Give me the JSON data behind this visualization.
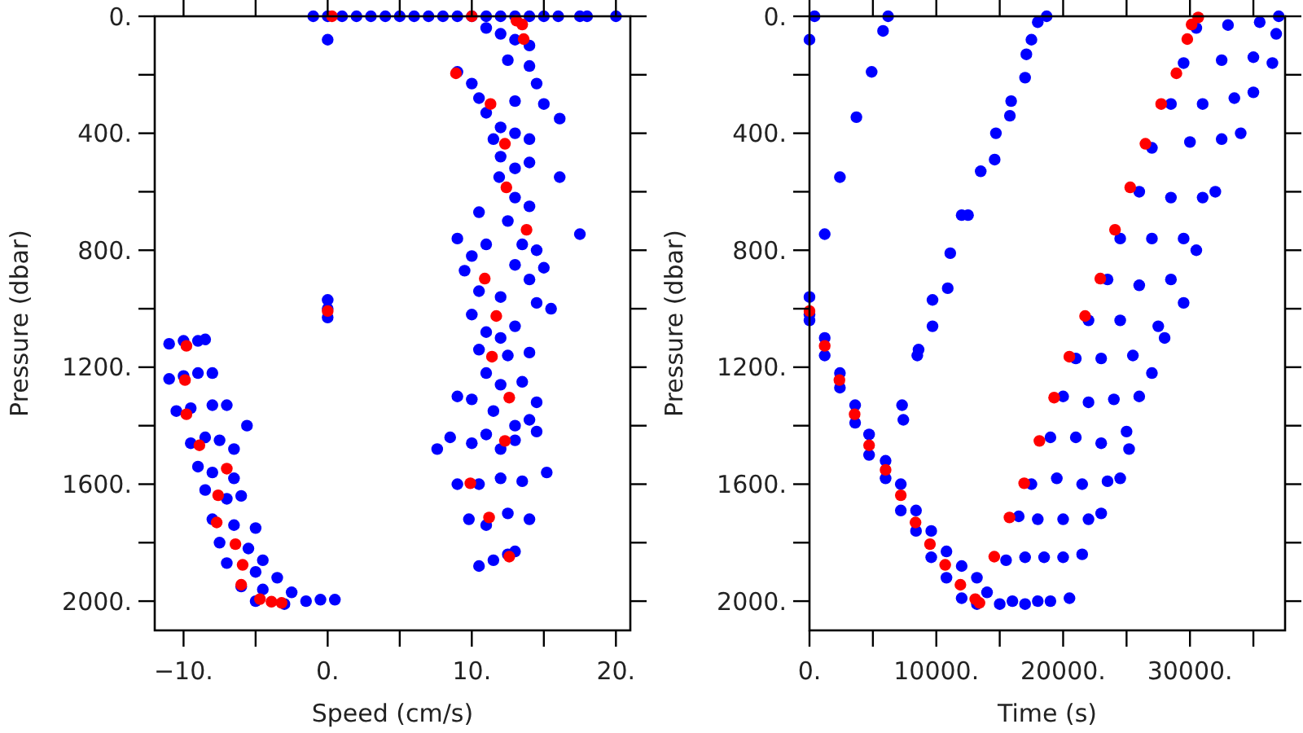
{
  "chart_data": [
    {
      "type": "scatter",
      "xlabel": "Speed (cm/s)",
      "ylabel": "Pressure (dbar)",
      "marker": "circle",
      "grid": false,
      "xlim": [
        -12,
        21
      ],
      "ylim": [
        2100,
        0
      ],
      "xticks": [
        {
          "value": -10,
          "label": "−10."
        },
        {
          "value": -5,
          "label": null
        },
        {
          "value": 0,
          "label": "0."
        },
        {
          "value": 5,
          "label": null
        },
        {
          "value": 10,
          "label": "10."
        },
        {
          "value": 15,
          "label": null
        },
        {
          "value": 20,
          "label": "20."
        }
      ],
      "yticks": [
        {
          "value": 0,
          "label": "0."
        },
        {
          "value": 200,
          "label": null
        },
        {
          "value": 400,
          "label": "400."
        },
        {
          "value": 600,
          "label": null
        },
        {
          "value": 800,
          "label": "800."
        },
        {
          "value": 1000,
          "label": null
        },
        {
          "value": 1200,
          "label": "1200."
        },
        {
          "value": 1400,
          "label": null
        },
        {
          "value": 1600,
          "label": "1600."
        },
        {
          "value": 1800,
          "label": null
        },
        {
          "value": 2000,
          "label": "2000."
        }
      ],
      "series": [
        {
          "color": "#0000ff",
          "x": [
            -1,
            0,
            1,
            2,
            3,
            4,
            5,
            6,
            7,
            8,
            9,
            10,
            11,
            12,
            13,
            14,
            15,
            16,
            17.5,
            18,
            20,
            0,
            11,
            12,
            13,
            14,
            12.5,
            14,
            14.5,
            13,
            15,
            9,
            10,
            10.5,
            11,
            12,
            11.5,
            13,
            14,
            12,
            13,
            14,
            11.9,
            13,
            14,
            12.5,
            13.5,
            14.5,
            15,
            14,
            13,
            16.1,
            16.1,
            17.5,
            10.5,
            9,
            10,
            11,
            9.5,
            10.5,
            12,
            14.5,
            15.5,
            10,
            11,
            12,
            13,
            10.5,
            12.5,
            14,
            11,
            12,
            13.5,
            14.5,
            9,
            10,
            11.5,
            13,
            14,
            8.5,
            10,
            11,
            12,
            13,
            14.5,
            7.6,
            9,
            10.5,
            12,
            13.5,
            15.2,
            9.8,
            11,
            12.5,
            14,
            10.5,
            11.5,
            12.5,
            13,
            0,
            0,
            0,
            -11,
            -10,
            -9,
            -8.5,
            -11,
            -10,
            -9,
            -8,
            -10.5,
            -9.5,
            -8,
            -7,
            -9.5,
            -8.5,
            -7.5,
            -6.5,
            -5.6,
            -9,
            -8,
            -6.5,
            -8.5,
            -7,
            -6,
            -8,
            -6.5,
            -5,
            -7.5,
            -5.5,
            -4.5,
            -7,
            -5,
            -3.5,
            -6,
            -4.5,
            -2.5,
            -5,
            -3,
            -1.5,
            -0.5,
            0.5
          ],
          "values": [
            0,
            0,
            0,
            0,
            0,
            0,
            0,
            0,
            0,
            0,
            0,
            0,
            0,
            0,
            0,
            0,
            0,
            0,
            0,
            0,
            0,
            80,
            40,
            60,
            80,
            100,
            150,
            170,
            230,
            290,
            300,
            190,
            230,
            280,
            330,
            380,
            420,
            400,
            420,
            480,
            520,
            500,
            550,
            620,
            650,
            700,
            780,
            800,
            860,
            900,
            850,
            350,
            550,
            745,
            670,
            760,
            820,
            780,
            870,
            940,
            960,
            980,
            1000,
            1020,
            1080,
            1100,
            1060,
            1140,
            1160,
            1150,
            1220,
            1260,
            1250,
            1320,
            1300,
            1310,
            1350,
            1400,
            1380,
            1440,
            1460,
            1430,
            1480,
            1450,
            1420,
            1480,
            1600,
            1600,
            1580,
            1590,
            1560,
            1720,
            1740,
            1700,
            1720,
            1880,
            1860,
            1840,
            1830,
            970,
            1000,
            1030,
            1120,
            1110,
            1110,
            1105,
            1240,
            1230,
            1220,
            1220,
            1350,
            1340,
            1330,
            1330,
            1460,
            1440,
            1450,
            1480,
            1400,
            1540,
            1560,
            1580,
            1620,
            1650,
            1640,
            1720,
            1740,
            1750,
            1800,
            1820,
            1860,
            1870,
            1900,
            1920,
            1950,
            1960,
            1970,
            2000,
            2010,
            2000,
            1995,
            1995
          ]
        },
        {
          "color": "#ff0000",
          "x": [
            0.3,
            10,
            13.1,
            13.5,
            13.6,
            8.9,
            11.3,
            12.3,
            12.4,
            13.8,
            10.9,
            11.7,
            11.4,
            12.6,
            12.3,
            9.9,
            11.2,
            12.6,
            0,
            -9.8,
            -9.9,
            -9.8,
            -8.9,
            -7,
            -7.6,
            -7.7,
            -6.4,
            -5.9,
            -6,
            -4.7,
            -3.9,
            -3.2
          ],
          "values": [
            0,
            0,
            15,
            28,
            78,
            195,
            300,
            436,
            585,
            730,
            897,
            1025,
            1164,
            1304,
            1452,
            1597,
            1714,
            1848,
            1008,
            1127,
            1244,
            1361,
            1467,
            1547,
            1638,
            1731,
            1805,
            1876,
            1944,
            1993,
            2002,
            2006
          ]
        }
      ]
    },
    {
      "type": "scatter",
      "xlabel": "Time (s)",
      "ylabel": "Pressure (dbar)",
      "marker": "circle",
      "grid": false,
      "xlim": [
        0,
        37500
      ],
      "ylim": [
        2100,
        0
      ],
      "xticks": [
        {
          "value": 0,
          "label": "0."
        },
        {
          "value": 5000,
          "label": null
        },
        {
          "value": 10000,
          "label": "10000."
        },
        {
          "value": 15000,
          "label": null
        },
        {
          "value": 20000,
          "label": "20000."
        },
        {
          "value": 25000,
          "label": null
        },
        {
          "value": 30000,
          "label": "30000."
        },
        {
          "value": 35000,
          "label": null
        }
      ],
      "yticks": [
        {
          "value": 0,
          "label": "0."
        },
        {
          "value": 200,
          "label": null
        },
        {
          "value": 400,
          "label": "400."
        },
        {
          "value": 600,
          "label": null
        },
        {
          "value": 800,
          "label": "800."
        },
        {
          "value": 1000,
          "label": null
        },
        {
          "value": 1200,
          "label": "1200."
        },
        {
          "value": 1400,
          "label": null
        },
        {
          "value": 1600,
          "label": "1600."
        },
        {
          "value": 1800,
          "label": null
        },
        {
          "value": 2000,
          "label": "2000."
        }
      ],
      "series": [
        {
          "color": "#0000ff",
          "x": [
            0,
            0,
            0,
            1200,
            1200,
            2400,
            2400,
            3600,
            3600,
            4700,
            4700,
            6000,
            6000,
            7200,
            7200,
            8400,
            8400,
            9600,
            9600,
            10800,
            10800,
            12000,
            12000,
            13200,
            13200,
            14000,
            15000,
            16000,
            17000,
            18000,
            19000,
            20500,
            15500,
            17000,
            18500,
            20000,
            21500,
            16500,
            18000,
            20000,
            22000,
            23000,
            17500,
            19500,
            21500,
            23500,
            24500,
            19000,
            21000,
            23000,
            25000,
            25200,
            20000,
            22000,
            24000,
            26000,
            21000,
            23000,
            25500,
            27000,
            22000,
            24500,
            27500,
            28000,
            23500,
            26000,
            28500,
            29500,
            24500,
            27000,
            29500,
            30500,
            26000,
            28500,
            31000,
            32000,
            27000,
            30000,
            32500,
            34000,
            28500,
            31000,
            33500,
            35000,
            29500,
            32500,
            35000,
            36500,
            30500,
            33000,
            35500,
            37000,
            36800,
            0,
            400,
            1200,
            2400,
            3700,
            4900,
            5800,
            6200,
            7300,
            7400,
            8500,
            8600,
            9700,
            9700,
            10900,
            11100,
            12000,
            12500,
            13500,
            14600,
            14700,
            15800,
            15900,
            17000,
            17100,
            17500,
            18000,
            18700
          ],
          "values": [
            960,
            1020,
            1040,
            1100,
            1160,
            1220,
            1270,
            1330,
            1390,
            1430,
            1500,
            1520,
            1580,
            1600,
            1690,
            1690,
            1760,
            1760,
            1850,
            1830,
            1920,
            1880,
            1990,
            1920,
            2010,
            1970,
            2010,
            2000,
            2010,
            2000,
            2000,
            1990,
            1860,
            1850,
            1850,
            1850,
            1840,
            1710,
            1720,
            1720,
            1720,
            1700,
            1600,
            1580,
            1600,
            1590,
            1580,
            1440,
            1440,
            1460,
            1420,
            1480,
            1300,
            1320,
            1310,
            1300,
            1170,
            1170,
            1160,
            1220,
            1040,
            1040,
            1060,
            1100,
            900,
            920,
            900,
            980,
            760,
            760,
            760,
            800,
            600,
            620,
            620,
            600,
            450,
            430,
            420,
            400,
            300,
            300,
            280,
            260,
            160,
            150,
            140,
            160,
            40,
            30,
            20,
            0,
            60,
            80,
            0,
            745,
            550,
            345,
            190,
            50,
            0,
            1330,
            1380,
            1160,
            1140,
            1060,
            970,
            930,
            810,
            680,
            680,
            530,
            490,
            400,
            340,
            290,
            210,
            130,
            80,
            20,
            0
          ]
        },
        {
          "color": "#ff0000",
          "x": [
            0,
            1200,
            2360,
            3560,
            4700,
            6000,
            7200,
            8360,
            9500,
            10700,
            11900,
            13070,
            13400,
            14570,
            15770,
            16930,
            18130,
            19290,
            20490,
            21730,
            22930,
            24090,
            25290,
            26490,
            27730,
            28930,
            29790,
            30130,
            30650
          ],
          "values": [
            1008,
            1127,
            1244,
            1361,
            1467,
            1551,
            1638,
            1731,
            1805,
            1876,
            1944,
            1993,
            2006,
            1848,
            1714,
            1597,
            1452,
            1304,
            1164,
            1025,
            897,
            730,
            585,
            436,
            300,
            195,
            78,
            28,
            4
          ]
        }
      ]
    }
  ]
}
